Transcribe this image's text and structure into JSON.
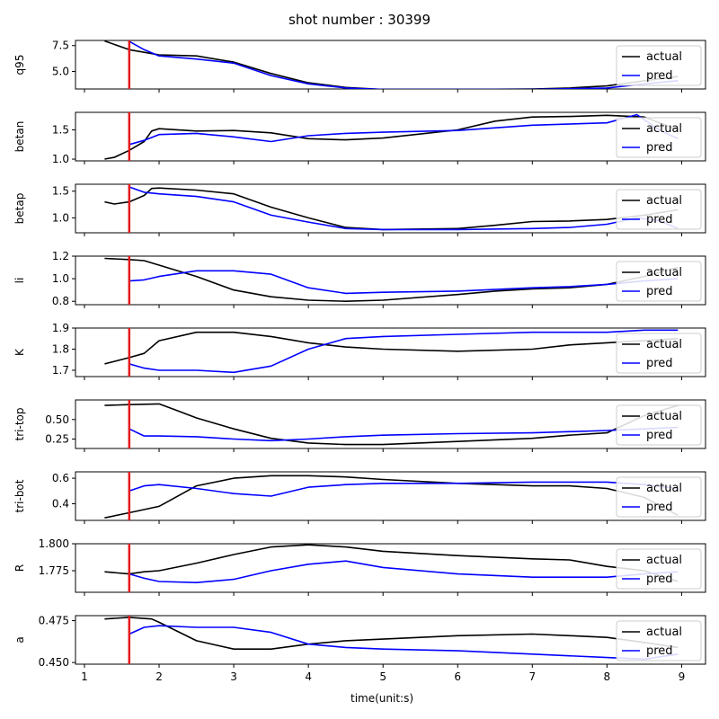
{
  "figure": {
    "title": "shot number : 30399",
    "xlabel": "time(unit:s)"
  },
  "colors": {
    "actual": "#000000",
    "pred": "#0000ff",
    "marker": "#e31a1c",
    "legend_bg": "#ffffff"
  },
  "chart_data": {
    "type": "line",
    "xlim": [
      0.88,
      9.32
    ],
    "xticks": [
      1,
      2,
      3,
      4,
      5,
      6,
      7,
      8,
      9
    ],
    "xtick_labels": [
      "1",
      "2",
      "3",
      "4",
      "5",
      "6",
      "7",
      "8",
      "9"
    ],
    "vertical_marker_x": 1.6,
    "legend": [
      "actual",
      "pred"
    ],
    "panels": [
      {
        "ylabel": "q95",
        "ylim": [
          3.3,
          8.0
        ],
        "yticks": [
          5.0,
          7.5
        ],
        "ytick_labels": [
          "5.0",
          "7.5"
        ],
        "actual": [
          [
            1.27,
            7.95
          ],
          [
            1.6,
            7.1
          ],
          [
            2.0,
            6.6
          ],
          [
            2.5,
            6.5
          ],
          [
            3.0,
            5.9
          ],
          [
            3.5,
            4.8
          ],
          [
            4.0,
            3.9
          ],
          [
            4.5,
            3.45
          ],
          [
            5.0,
            3.25
          ],
          [
            6.0,
            3.25
          ],
          [
            7.0,
            3.3
          ],
          [
            7.5,
            3.4
          ],
          [
            8.0,
            3.6
          ],
          [
            8.5,
            4.1
          ],
          [
            8.95,
            4.5
          ]
        ],
        "pred": [
          [
            1.6,
            7.9
          ],
          [
            1.8,
            7.1
          ],
          [
            2.0,
            6.5
          ],
          [
            2.5,
            6.2
          ],
          [
            3.0,
            5.8
          ],
          [
            3.5,
            4.6
          ],
          [
            4.0,
            3.8
          ],
          [
            4.5,
            3.4
          ],
          [
            5.0,
            3.25
          ],
          [
            6.0,
            3.25
          ],
          [
            7.0,
            3.25
          ],
          [
            8.0,
            3.4
          ],
          [
            8.5,
            3.8
          ],
          [
            8.95,
            4.1
          ]
        ]
      },
      {
        "ylabel": "betan",
        "ylim": [
          0.97,
          1.8
        ],
        "yticks": [
          1.0,
          1.5
        ],
        "ytick_labels": [
          "1.0",
          "1.5"
        ],
        "actual": [
          [
            1.27,
            1.0
          ],
          [
            1.4,
            1.03
          ],
          [
            1.6,
            1.15
          ],
          [
            1.8,
            1.3
          ],
          [
            1.9,
            1.48
          ],
          [
            2.0,
            1.52
          ],
          [
            2.5,
            1.48
          ],
          [
            3.0,
            1.49
          ],
          [
            3.5,
            1.45
          ],
          [
            4.0,
            1.35
          ],
          [
            4.5,
            1.33
          ],
          [
            5.0,
            1.36
          ],
          [
            5.5,
            1.43
          ],
          [
            6.0,
            1.5
          ],
          [
            6.5,
            1.65
          ],
          [
            7.0,
            1.72
          ],
          [
            7.5,
            1.73
          ],
          [
            8.0,
            1.75
          ],
          [
            8.5,
            1.72
          ],
          [
            8.95,
            1.5
          ]
        ],
        "pred": [
          [
            1.6,
            1.25
          ],
          [
            1.8,
            1.32
          ],
          [
            2.0,
            1.42
          ],
          [
            2.5,
            1.44
          ],
          [
            3.0,
            1.38
          ],
          [
            3.5,
            1.3
          ],
          [
            4.0,
            1.4
          ],
          [
            4.5,
            1.44
          ],
          [
            5.0,
            1.46
          ],
          [
            6.0,
            1.49
          ],
          [
            7.0,
            1.58
          ],
          [
            8.0,
            1.62
          ],
          [
            8.4,
            1.76
          ],
          [
            8.7,
            1.5
          ],
          [
            8.95,
            1.35
          ]
        ]
      },
      {
        "ylabel": "betap",
        "ylim": [
          0.72,
          1.63
        ],
        "yticks": [
          1.0,
          1.5
        ],
        "ytick_labels": [
          "1.0",
          "1.5"
        ],
        "actual": [
          [
            1.27,
            1.3
          ],
          [
            1.4,
            1.26
          ],
          [
            1.6,
            1.3
          ],
          [
            1.8,
            1.42
          ],
          [
            1.9,
            1.55
          ],
          [
            2.0,
            1.56
          ],
          [
            2.5,
            1.52
          ],
          [
            3.0,
            1.45
          ],
          [
            3.5,
            1.2
          ],
          [
            4.0,
            1.0
          ],
          [
            4.5,
            0.82
          ],
          [
            5.0,
            0.78
          ],
          [
            6.0,
            0.8
          ],
          [
            6.5,
            0.86
          ],
          [
            7.0,
            0.93
          ],
          [
            7.5,
            0.94
          ],
          [
            8.0,
            0.97
          ],
          [
            8.5,
            1.05
          ],
          [
            8.95,
            1.15
          ]
        ],
        "pred": [
          [
            1.6,
            1.58
          ],
          [
            1.8,
            1.48
          ],
          [
            2.0,
            1.45
          ],
          [
            2.5,
            1.4
          ],
          [
            3.0,
            1.3
          ],
          [
            3.5,
            1.05
          ],
          [
            4.0,
            0.92
          ],
          [
            4.5,
            0.8
          ],
          [
            5.0,
            0.78
          ],
          [
            6.0,
            0.78
          ],
          [
            7.0,
            0.8
          ],
          [
            7.5,
            0.82
          ],
          [
            8.0,
            0.88
          ],
          [
            8.4,
            1.0
          ],
          [
            8.7,
            0.95
          ],
          [
            8.95,
            0.8
          ]
        ]
      },
      {
        "ylabel": "li",
        "ylim": [
          0.77,
          1.2
        ],
        "yticks": [
          0.8,
          1.0,
          1.2
        ],
        "ytick_labels": [
          "0.8",
          "1.0",
          "1.2"
        ],
        "actual": [
          [
            1.27,
            1.18
          ],
          [
            1.6,
            1.17
          ],
          [
            1.8,
            1.16
          ],
          [
            2.0,
            1.12
          ],
          [
            2.5,
            1.02
          ],
          [
            3.0,
            0.9
          ],
          [
            3.5,
            0.84
          ],
          [
            4.0,
            0.81
          ],
          [
            4.5,
            0.8
          ],
          [
            5.0,
            0.81
          ],
          [
            6.0,
            0.86
          ],
          [
            6.5,
            0.89
          ],
          [
            7.0,
            0.91
          ],
          [
            7.5,
            0.92
          ],
          [
            8.0,
            0.95
          ],
          [
            8.5,
            1.02
          ],
          [
            8.95,
            1.1
          ]
        ],
        "pred": [
          [
            1.6,
            0.98
          ],
          [
            1.8,
            0.99
          ],
          [
            2.0,
            1.02
          ],
          [
            2.5,
            1.07
          ],
          [
            3.0,
            1.07
          ],
          [
            3.5,
            1.04
          ],
          [
            4.0,
            0.92
          ],
          [
            4.5,
            0.87
          ],
          [
            5.0,
            0.88
          ],
          [
            6.0,
            0.89
          ],
          [
            7.0,
            0.92
          ],
          [
            7.5,
            0.93
          ],
          [
            8.0,
            0.95
          ],
          [
            8.5,
            0.98
          ],
          [
            8.95,
            1.0
          ]
        ]
      },
      {
        "ylabel": "K",
        "ylim": [
          1.67,
          1.9
        ],
        "yticks": [
          1.7,
          1.8,
          1.9
        ],
        "ytick_labels": [
          "1.7",
          "1.8",
          "1.9"
        ],
        "actual": [
          [
            1.27,
            1.73
          ],
          [
            1.6,
            1.76
          ],
          [
            1.8,
            1.78
          ],
          [
            2.0,
            1.84
          ],
          [
            2.5,
            1.88
          ],
          [
            3.0,
            1.88
          ],
          [
            3.5,
            1.86
          ],
          [
            4.0,
            1.83
          ],
          [
            4.5,
            1.81
          ],
          [
            5.0,
            1.8
          ],
          [
            6.0,
            1.79
          ],
          [
            7.0,
            1.8
          ],
          [
            7.5,
            1.82
          ],
          [
            8.0,
            1.83
          ],
          [
            8.5,
            1.84
          ],
          [
            8.95,
            1.85
          ]
        ],
        "pred": [
          [
            1.6,
            1.73
          ],
          [
            1.8,
            1.71
          ],
          [
            2.0,
            1.7
          ],
          [
            2.5,
            1.7
          ],
          [
            3.0,
            1.69
          ],
          [
            3.5,
            1.72
          ],
          [
            4.0,
            1.8
          ],
          [
            4.5,
            1.85
          ],
          [
            5.0,
            1.86
          ],
          [
            6.0,
            1.87
          ],
          [
            7.0,
            1.88
          ],
          [
            8.0,
            1.88
          ],
          [
            8.5,
            1.89
          ],
          [
            8.95,
            1.89
          ]
        ]
      },
      {
        "ylabel": "tri-top",
        "ylim": [
          0.13,
          0.75
        ],
        "yticks": [
          0.25,
          0.5
        ],
        "ytick_labels": [
          "0.25",
          "0.50"
        ],
        "actual": [
          [
            1.27,
            0.68
          ],
          [
            1.6,
            0.69
          ],
          [
            2.0,
            0.7
          ],
          [
            2.2,
            0.63
          ],
          [
            2.5,
            0.52
          ],
          [
            3.0,
            0.38
          ],
          [
            3.5,
            0.26
          ],
          [
            4.0,
            0.2
          ],
          [
            4.5,
            0.18
          ],
          [
            5.0,
            0.18
          ],
          [
            6.0,
            0.22
          ],
          [
            7.0,
            0.26
          ],
          [
            7.5,
            0.3
          ],
          [
            8.0,
            0.33
          ],
          [
            8.5,
            0.55
          ],
          [
            8.95,
            0.68
          ]
        ],
        "pred": [
          [
            1.6,
            0.38
          ],
          [
            1.8,
            0.29
          ],
          [
            2.0,
            0.29
          ],
          [
            2.5,
            0.28
          ],
          [
            3.0,
            0.25
          ],
          [
            3.5,
            0.23
          ],
          [
            4.0,
            0.25
          ],
          [
            4.5,
            0.28
          ],
          [
            5.0,
            0.3
          ],
          [
            6.0,
            0.32
          ],
          [
            7.0,
            0.33
          ],
          [
            8.0,
            0.36
          ],
          [
            8.5,
            0.38
          ],
          [
            8.95,
            0.4
          ]
        ]
      },
      {
        "ylabel": "tri-bot",
        "ylim": [
          0.27,
          0.65
        ],
        "yticks": [
          0.4,
          0.6
        ],
        "ytick_labels": [
          "0.4",
          "0.6"
        ],
        "actual": [
          [
            1.27,
            0.29
          ],
          [
            1.6,
            0.33
          ],
          [
            2.0,
            0.38
          ],
          [
            2.5,
            0.54
          ],
          [
            3.0,
            0.6
          ],
          [
            3.5,
            0.62
          ],
          [
            4.0,
            0.62
          ],
          [
            4.5,
            0.61
          ],
          [
            5.0,
            0.59
          ],
          [
            6.0,
            0.56
          ],
          [
            7.0,
            0.54
          ],
          [
            7.5,
            0.54
          ],
          [
            8.0,
            0.52
          ],
          [
            8.5,
            0.45
          ],
          [
            8.95,
            0.31
          ]
        ],
        "pred": [
          [
            1.6,
            0.5
          ],
          [
            1.8,
            0.54
          ],
          [
            2.0,
            0.55
          ],
          [
            2.5,
            0.52
          ],
          [
            3.0,
            0.48
          ],
          [
            3.5,
            0.46
          ],
          [
            4.0,
            0.53
          ],
          [
            4.5,
            0.55
          ],
          [
            5.0,
            0.56
          ],
          [
            6.0,
            0.56
          ],
          [
            7.0,
            0.57
          ],
          [
            7.5,
            0.57
          ],
          [
            8.0,
            0.57
          ],
          [
            8.5,
            0.55
          ],
          [
            8.95,
            0.52
          ]
        ]
      },
      {
        "ylabel": "R",
        "ylim": [
          1.755,
          1.8
        ],
        "yticks": [
          1.775,
          1.8
        ],
        "ytick_labels": [
          "1.775",
          "1.800"
        ],
        "actual": [
          [
            1.27,
            1.774
          ],
          [
            1.6,
            1.772
          ],
          [
            1.8,
            1.774
          ],
          [
            2.0,
            1.775
          ],
          [
            2.5,
            1.782
          ],
          [
            3.0,
            1.79
          ],
          [
            3.5,
            1.797
          ],
          [
            4.0,
            1.799
          ],
          [
            4.5,
            1.797
          ],
          [
            5.0,
            1.793
          ],
          [
            6.0,
            1.789
          ],
          [
            7.0,
            1.786
          ],
          [
            7.5,
            1.785
          ],
          [
            8.0,
            1.779
          ],
          [
            8.5,
            1.775
          ],
          [
            8.95,
            1.765
          ]
        ],
        "pred": [
          [
            1.6,
            1.772
          ],
          [
            1.8,
            1.768
          ],
          [
            2.0,
            1.765
          ],
          [
            2.5,
            1.764
          ],
          [
            3.0,
            1.767
          ],
          [
            3.5,
            1.775
          ],
          [
            4.0,
            1.781
          ],
          [
            4.5,
            1.784
          ],
          [
            5.0,
            1.778
          ],
          [
            6.0,
            1.772
          ],
          [
            7.0,
            1.769
          ],
          [
            7.5,
            1.769
          ],
          [
            8.0,
            1.769
          ],
          [
            8.5,
            1.772
          ],
          [
            8.95,
            1.774
          ]
        ]
      },
      {
        "ylabel": "a",
        "ylim": [
          0.449,
          0.478
        ],
        "yticks": [
          0.45,
          0.475
        ],
        "ytick_labels": [
          "0.450",
          "0.475"
        ],
        "actual": [
          [
            1.27,
            0.476
          ],
          [
            1.6,
            0.477
          ],
          [
            1.9,
            0.476
          ],
          [
            2.0,
            0.474
          ],
          [
            2.5,
            0.463
          ],
          [
            3.0,
            0.458
          ],
          [
            3.5,
            0.458
          ],
          [
            4.0,
            0.461
          ],
          [
            4.5,
            0.463
          ],
          [
            5.0,
            0.464
          ],
          [
            6.0,
            0.466
          ],
          [
            7.0,
            0.467
          ],
          [
            7.5,
            0.466
          ],
          [
            8.0,
            0.465
          ],
          [
            8.5,
            0.462
          ],
          [
            8.95,
            0.459
          ]
        ],
        "pred": [
          [
            1.6,
            0.467
          ],
          [
            1.8,
            0.471
          ],
          [
            2.0,
            0.472
          ],
          [
            2.5,
            0.471
          ],
          [
            3.0,
            0.471
          ],
          [
            3.5,
            0.468
          ],
          [
            4.0,
            0.461
          ],
          [
            4.5,
            0.459
          ],
          [
            5.0,
            0.458
          ],
          [
            6.0,
            0.457
          ],
          [
            7.0,
            0.455
          ],
          [
            8.0,
            0.453
          ],
          [
            8.5,
            0.452
          ],
          [
            8.95,
            0.455
          ]
        ]
      }
    ]
  }
}
